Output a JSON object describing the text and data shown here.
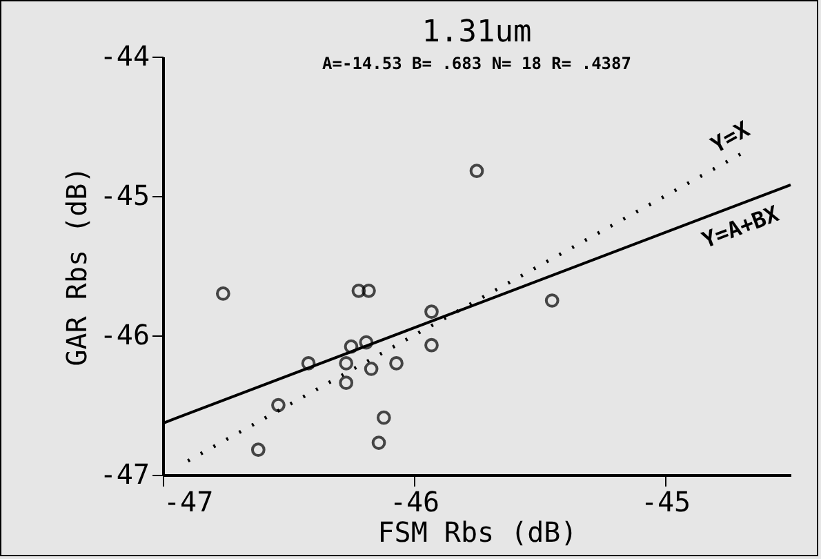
{
  "chart_data": {
    "type": "scatter",
    "title": "1.31um",
    "annotations": [
      "A=-14.53   B= .683   N= 18   R= .4387"
    ],
    "xlabel": "FSM Rbs (dB)",
    "ylabel": "GAR Rbs (dB)",
    "xlim": [
      -47,
      -44.5
    ],
    "ylim": [
      -47,
      -44
    ],
    "xticks": [
      -47,
      -46,
      -45
    ],
    "yticks": [
      -47,
      -46,
      -45,
      -44
    ],
    "grid": false,
    "series": [
      {
        "type": "scatter",
        "color": "#000000",
        "marker": "circle",
        "x": [
          -46.76,
          -46.22,
          -46.18,
          -45.93,
          -46.42,
          -46.25,
          -46.19,
          -46.27,
          -46.27,
          -46.17,
          -46.07,
          -45.93,
          -46.54,
          -46.62,
          -46.12,
          -46.14,
          -45.75,
          -45.45
        ],
        "values": [
          -45.7,
          -45.68,
          -45.68,
          -45.83,
          -46.2,
          -46.08,
          -46.05,
          -46.2,
          -46.34,
          -46.24,
          -46.2,
          -46.07,
          -46.5,
          -46.82,
          -46.59,
          -46.77,
          -44.82,
          -45.75
        ]
      },
      {
        "type": "line",
        "name": "Y=X",
        "color": "#000000",
        "line_style": "dotted",
        "x": [
          -46.9,
          -44.7
        ],
        "values": [
          -46.9,
          -44.7
        ]
      },
      {
        "type": "line",
        "name": "Y=A+BX",
        "color": "#000000",
        "line_style": "solid",
        "x": [
          -47,
          -44.5
        ],
        "values": [
          -46.63,
          -44.92
        ]
      }
    ]
  }
}
